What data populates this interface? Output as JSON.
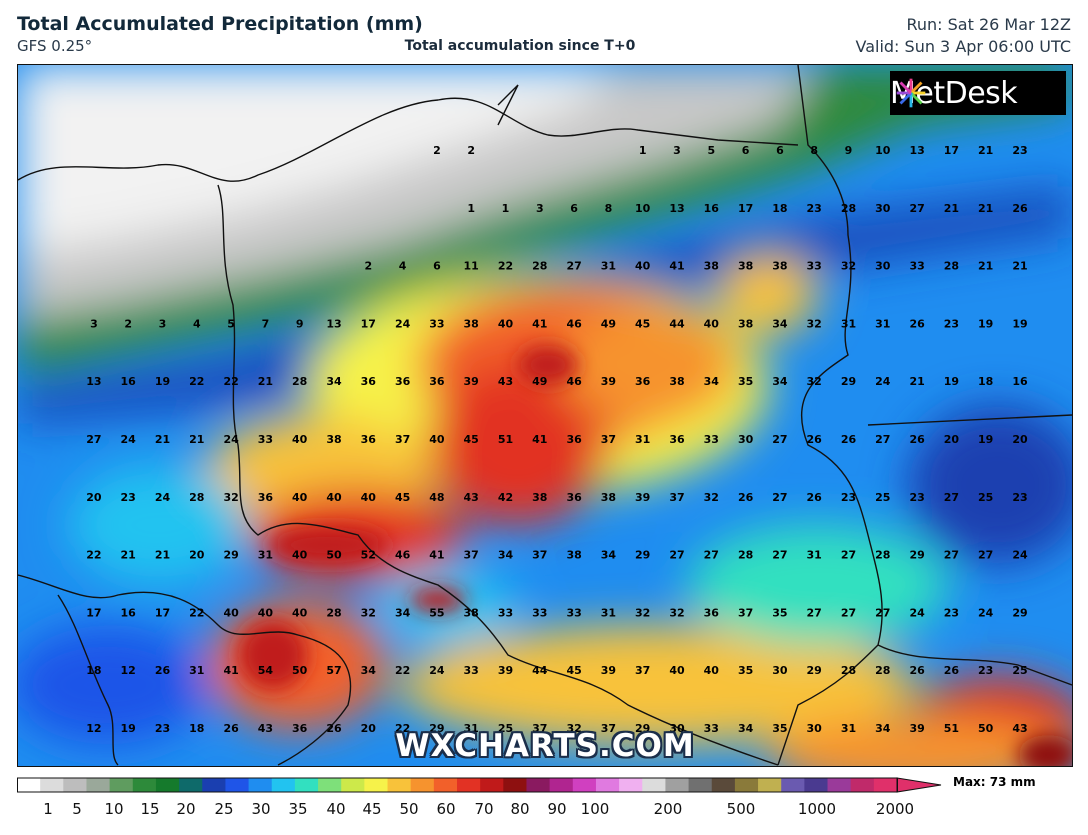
{
  "header": {
    "title": "Total Accumulated Precipitation (mm)",
    "model": "GFS 0.25°",
    "subtitle": "Total accumulation since T+0",
    "run": "Run: Sat 26 Mar 12Z",
    "valid": "Valid: Sun 3 Apr 06:00 UTC"
  },
  "logo": {
    "text": "MetDesk",
    "icon": "metdesk-star-icon"
  },
  "watermark": "WXCHARTS.COM",
  "legend": {
    "max_label": "Max: 73 mm",
    "ticks": [
      "1",
      "5",
      "10",
      "15",
      "20",
      "25",
      "30",
      "35",
      "40",
      "45",
      "50",
      "60",
      "70",
      "80",
      "90",
      "100",
      "200",
      "500",
      "1000",
      "2000"
    ],
    "colors": [
      "#ffffff",
      "#dcdcdc",
      "#bdbdbd",
      "#9aa89a",
      "#5f9c5f",
      "#2d8a3a",
      "#157a2c",
      "#0e6a6a",
      "#1a3fb0",
      "#1f55e8",
      "#1f8df0",
      "#22c3f0",
      "#32e0c0",
      "#7ee07a",
      "#cde94a",
      "#f6f24a",
      "#f8c23a",
      "#f6932e",
      "#f2602a",
      "#e23224",
      "#c01a1a",
      "#8e1010",
      "#8a1a60",
      "#b02590",
      "#d040c0",
      "#e07ae0",
      "#f0b0f0",
      "#dcdcdc",
      "#a0a0a0",
      "#707070",
      "#5a4a3a",
      "#8a7a3a",
      "#c0b050",
      "#6a5ab0",
      "#4a3a90",
      "#9a3a9a",
      "#c02a6a",
      "#e0306a"
    ]
  },
  "map": {
    "grid": [
      [
        null,
        null,
        null,
        null,
        null,
        null,
        null,
        null,
        null,
        null,
        null,
        null,
        "2",
        "2",
        null,
        null,
        null,
        null,
        "1",
        "3",
        "5",
        "6",
        "6",
        "8",
        "9",
        "10",
        "13",
        "17",
        "21",
        "23"
      ],
      [
        null,
        null,
        null,
        null,
        null,
        null,
        null,
        null,
        null,
        null,
        null,
        null,
        "1",
        "1",
        "3",
        "6",
        "8",
        "10",
        "13",
        "16",
        "17",
        "18",
        "23",
        "28",
        "30",
        "27",
        "21",
        "21",
        "26"
      ],
      [
        null,
        null,
        null,
        null,
        null,
        null,
        null,
        null,
        null,
        null,
        "2",
        "4",
        "6",
        "11",
        "22",
        "28",
        "27",
        "31",
        "40",
        "41",
        "38",
        "38",
        "38",
        "33",
        "32",
        "30",
        "33",
        "28",
        "21",
        "21"
      ],
      [
        "3",
        "2",
        "3",
        "4",
        "5",
        "7",
        "9",
        "13",
        "17",
        "24",
        "33",
        "38",
        "40",
        "41",
        "46",
        "49",
        "45",
        "44",
        "40",
        "38",
        "34",
        "32",
        "31",
        "31",
        "26",
        "23",
        "19",
        "19"
      ],
      [
        "13",
        "16",
        "19",
        "22",
        "22",
        "21",
        "28",
        "34",
        "36",
        "36",
        "36",
        "39",
        "43",
        "49",
        "46",
        "39",
        "36",
        "38",
        "34",
        "35",
        "34",
        "32",
        "29",
        "24",
        "21",
        "19",
        "18",
        "16"
      ],
      [
        "27",
        "24",
        "21",
        "21",
        "24",
        "33",
        "40",
        "38",
        "36",
        "37",
        "40",
        "45",
        "51",
        "41",
        "36",
        "37",
        "31",
        "36",
        "33",
        "30",
        "27",
        "26",
        "26",
        "27",
        "26",
        "20",
        "19",
        "20"
      ],
      [
        "20",
        "23",
        "24",
        "28",
        "32",
        "36",
        "40",
        "40",
        "40",
        "45",
        "48",
        "43",
        "42",
        "38",
        "36",
        "38",
        "39",
        "37",
        "32",
        "26",
        "27",
        "26",
        "23",
        "25",
        "23",
        "27",
        "25",
        "23"
      ],
      [
        "22",
        "21",
        "21",
        "20",
        "29",
        "31",
        "40",
        "50",
        "52",
        "46",
        "41",
        "37",
        "34",
        "37",
        "38",
        "34",
        "29",
        "27",
        "27",
        "28",
        "27",
        "31",
        "27",
        "28",
        "29",
        "27",
        "27",
        "24"
      ],
      [
        "17",
        "16",
        "17",
        "22",
        "40",
        "40",
        "40",
        "28",
        "32",
        "34",
        "55",
        "38",
        "33",
        "33",
        "33",
        "31",
        "32",
        "32",
        "36",
        "37",
        "35",
        "27",
        "27",
        "27",
        "24",
        "23",
        "24",
        "29"
      ],
      [
        "18",
        "12",
        "26",
        "31",
        "41",
        "54",
        "50",
        "57",
        "34",
        "22",
        "24",
        "33",
        "39",
        "44",
        "45",
        "39",
        "37",
        "40",
        "40",
        "35",
        "30",
        "29",
        "28",
        "28",
        "26",
        "26",
        "23",
        "25"
      ],
      [
        "12",
        "19",
        "23",
        "18",
        "26",
        "43",
        "36",
        "26",
        "20",
        "22",
        "29",
        "31",
        "25",
        "37",
        "32",
        "37",
        "29",
        "30",
        "33",
        "34",
        "35",
        "30",
        "31",
        "34",
        "39",
        "51",
        "50",
        "43"
      ]
    ]
  }
}
